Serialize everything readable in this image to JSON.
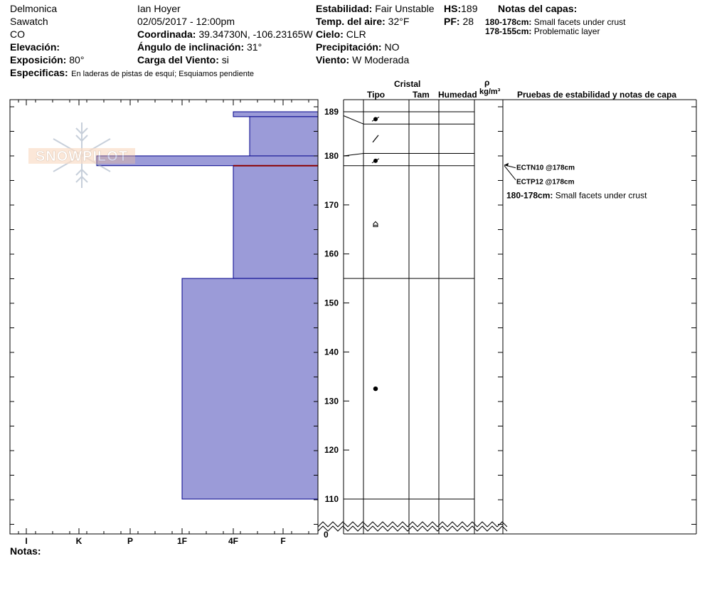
{
  "header": {
    "location": "Delmonica",
    "range": "Sawatch",
    "state": "CO",
    "elevation_label": "Elevación:",
    "elevation_value": "",
    "aspect_label": "Exposición:",
    "aspect_value": "80°",
    "observer": "Ian Hoyer",
    "datetime": "02/05/2017 - 12:00pm",
    "coord_label": "Coordinada:",
    "coord_value": "39.34730N, -106.23165W",
    "slope_label": "Ángulo de inclinación:",
    "slope_value": "31°",
    "windload_label": "Carga del Viento:",
    "windload_value": "si",
    "specifics_label": "Especificas:",
    "specifics_value": "En laderas de pistas de esquí; Esquiamos pendiente",
    "stability_label": "Estabilidad:",
    "stability_value": "Fair Unstable",
    "hs_label": "HS:",
    "hs_value": "189",
    "airtemp_label": "Temp. del aire:",
    "airtemp_value": "32°F",
    "pf_label": "PF:",
    "pf_value": "28",
    "sky_label": "Cielo:",
    "sky_value": "CLR",
    "precip_label": "Precipitación:",
    "precip_value": "NO",
    "wind_label": "Viento:",
    "wind_value": "W Moderada",
    "layer_notes_title": "Notas del capas:",
    "layer_notes": [
      {
        "range": "180-178cm:",
        "text": "Small facets under crust"
      },
      {
        "range": "178-155cm:",
        "text": "Problematic layer"
      }
    ]
  },
  "logo_text": "SNOWPILOT",
  "columns": {
    "crystal": "Cristal",
    "type": "Tipo",
    "size": "Tam",
    "moisture": "Humedad",
    "rho": "ρ",
    "density_unit": "kg/m³",
    "tests": "Pruebas de estabilidad y notas de capa"
  },
  "notes_label": "Notas:",
  "chart_data": {
    "type": "snow_profile",
    "hardness_scale": [
      "I",
      "K",
      "P",
      "1F",
      "4F",
      "F"
    ],
    "y_range_cm": [
      110,
      189
    ],
    "y_ticks": [
      189,
      180,
      170,
      160,
      150,
      140,
      130,
      120,
      110
    ],
    "y_zero_label": "0",
    "hardness_layers": [
      {
        "top": 189,
        "bottom": 188,
        "hardness": "4F+"
      },
      {
        "top": 188,
        "bottom": 180,
        "hardness": "F-"
      },
      {
        "top": 180,
        "bottom": 178,
        "hardness": "K+"
      },
      {
        "top": 178,
        "bottom": 155,
        "hardness": "4F"
      },
      {
        "top": 155,
        "bottom": 110,
        "hardness": "1F"
      }
    ],
    "layer_boundaries": [
      189,
      186.5,
      180.5,
      178,
      155,
      110
    ],
    "grain_symbols": [
      {
        "depth": 187.5,
        "symbol": "rounding-faceted"
      },
      {
        "depth": 183.5,
        "symbol": "precipitation-particle"
      },
      {
        "depth": 179,
        "symbol": "rounding-faceted"
      },
      {
        "depth": 166,
        "symbol": "depth-hoar"
      },
      {
        "depth": 132.5,
        "symbol": "rounded-grain"
      }
    ],
    "problem_layer_cm": 178,
    "tests": [
      {
        "label": "ECTN10 @178cm",
        "depth": 178
      },
      {
        "label": "ECTP12 @178cm",
        "depth": 178
      }
    ],
    "test_note": {
      "range": "180-178cm:",
      "text": "Small facets under crust"
    }
  }
}
